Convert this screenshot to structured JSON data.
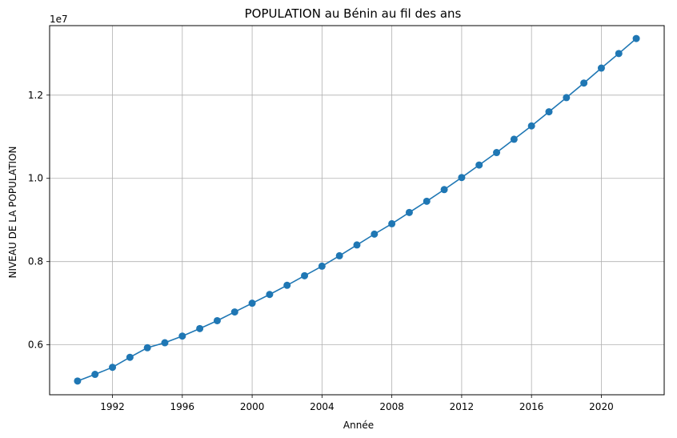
{
  "chart_data": {
    "type": "line",
    "title": "POPULATION au Bénin au fil des ans",
    "xlabel": "Année",
    "ylabel": "NIVEAU DE LA POPULATION",
    "y_offset_label": "1e7",
    "xlim": [
      1988.4,
      2023.6
    ],
    "ylim": [
      4800000,
      13670000
    ],
    "x_ticks": [
      1992,
      1996,
      2000,
      2004,
      2008,
      2012,
      2016,
      2020
    ],
    "y_ticks": [
      6000000,
      8000000,
      10000000,
      12000000
    ],
    "y_tick_labels": [
      "0.6",
      "0.8",
      "1.0",
      "1.2"
    ],
    "grid": true,
    "color": "#1f77b4",
    "marker": "circle",
    "series": [
      {
        "x": [
          1990,
          1991,
          1992,
          1993,
          1994,
          1995,
          1996,
          1997,
          1998,
          1999,
          2000,
          2001,
          2002,
          2003,
          2004,
          2005,
          2006,
          2007,
          2008,
          2009,
          2010,
          2011,
          2012,
          2013,
          2014,
          2015,
          2016,
          2017,
          2018,
          2019,
          2020,
          2021,
          2022
        ],
        "values": [
          5130000,
          5290000,
          5460000,
          5700000,
          5930000,
          6050000,
          6210000,
          6390000,
          6580000,
          6790000,
          7000000,
          7210000,
          7430000,
          7660000,
          7890000,
          8140000,
          8400000,
          8660000,
          8910000,
          9180000,
          9450000,
          9730000,
          10020000,
          10320000,
          10620000,
          10940000,
          11260000,
          11600000,
          11940000,
          12290000,
          12650000,
          13000000,
          13360000
        ]
      }
    ]
  }
}
